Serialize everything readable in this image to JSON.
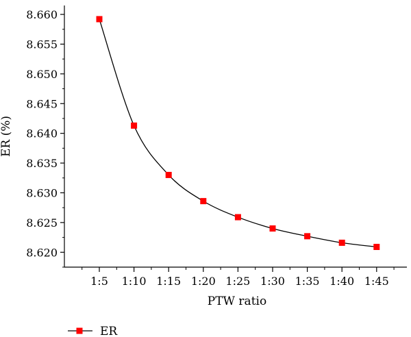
{
  "chart_data": {
    "type": "line",
    "categories": [
      "1:5",
      "1:10",
      "1:15",
      "1:20",
      "1:25",
      "1:30",
      "1:35",
      "1:40",
      "1:45"
    ],
    "series": [
      {
        "name": "ER",
        "values": [
          8.6592,
          8.6413,
          8.633,
          8.6286,
          8.6259,
          8.624,
          8.6227,
          8.6216,
          8.6209
        ],
        "color": "#ff0000",
        "marker": "square"
      }
    ],
    "xlabel": "PTW ratio",
    "ylabel": "ER (%)",
    "ylim": [
      8.6175,
      8.6615
    ],
    "yticks": [
      "8.620",
      "8.625",
      "8.630",
      "8.635",
      "8.640",
      "8.645",
      "8.650",
      "8.655",
      "8.660"
    ],
    "grid": false,
    "legend": "bottom-left"
  }
}
